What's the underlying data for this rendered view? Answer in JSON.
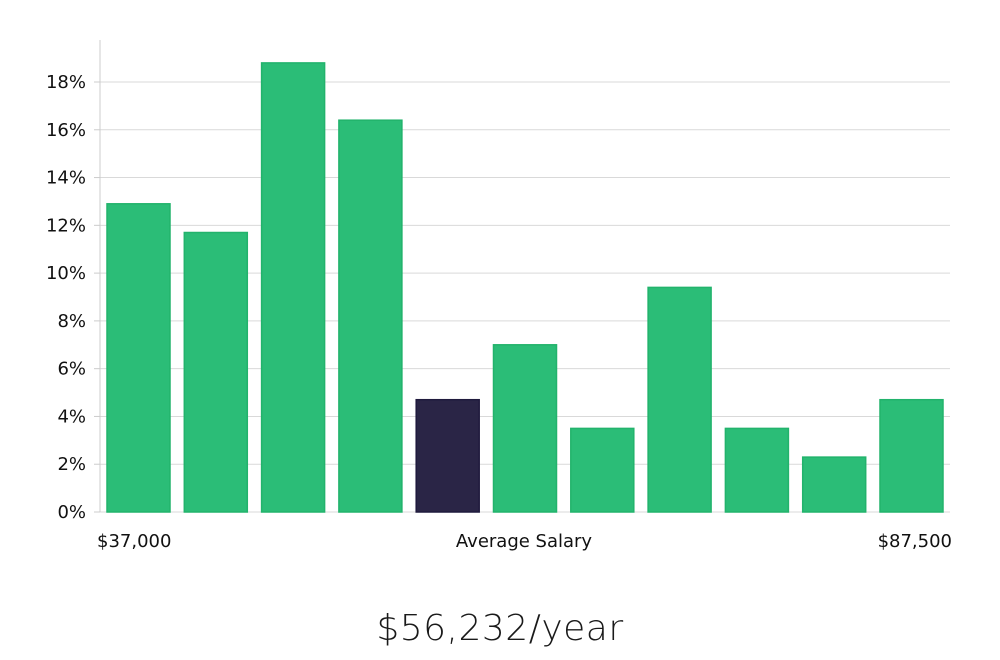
{
  "chart_data": {
    "type": "bar",
    "title": "",
    "xlabel": "Average Salary",
    "ylabel": "",
    "x_start_label": "$37,000",
    "x_end_label": "$87,500",
    "ylim": [
      0,
      19.5
    ],
    "yticks": [
      "0%",
      "2%",
      "4%",
      "6%",
      "8%",
      "10%",
      "12%",
      "14%",
      "16%",
      "18%"
    ],
    "ytick_values": [
      0,
      2,
      4,
      6,
      8,
      10,
      12,
      14,
      16,
      18
    ],
    "values": [
      12.9,
      11.7,
      18.8,
      16.4,
      4.7,
      7.0,
      3.5,
      9.4,
      3.5,
      2.3,
      4.7
    ],
    "highlight_index": 4,
    "grid": true
  },
  "colors": {
    "bar": "#2bbd77",
    "bar_edge": "#22b36c",
    "highlight": "#2a2546",
    "grid": "#d9d9d9",
    "axis": "#cccccc"
  },
  "summary": {
    "salary_text": "$56,232/year"
  }
}
